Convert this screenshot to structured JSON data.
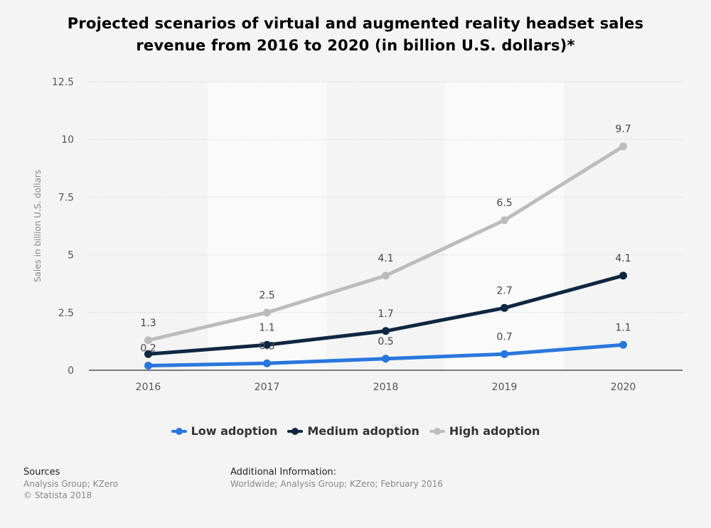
{
  "title": {
    "line1": "Projected scenarios of virtual and augmented reality headset sales",
    "line2": "revenue from 2016 to 2020 (in billion U.S. dollars)*"
  },
  "chart_data": {
    "type": "line",
    "x": [
      "2016",
      "2017",
      "2018",
      "2019",
      "2020"
    ],
    "ylabel": "Sales in billion U.S. dollars",
    "ylim": [
      0,
      12.5
    ],
    "yticks": [
      0,
      2.5,
      5,
      7.5,
      10,
      12.5
    ],
    "ytick_labels": [
      "0",
      "2.5",
      "5",
      "7.5",
      "10",
      "12.5"
    ],
    "grid": true,
    "legend_position": "bottom",
    "series": [
      {
        "name": "Low adoption",
        "color": "#2a76dd",
        "values": [
          0.2,
          0.3,
          0.5,
          0.7,
          1.1
        ],
        "labels": [
          "0.2",
          "0.3",
          "0.5",
          "0.7",
          "1.1"
        ]
      },
      {
        "name": "Medium adoption",
        "color": "#0f2741",
        "values": [
          0.7,
          1.1,
          1.7,
          2.7,
          4.1
        ],
        "labels": [
          "",
          "1.1",
          "1.7",
          "2.7",
          "4.1"
        ]
      },
      {
        "name": "High adoption",
        "color": "#bcbcbc",
        "values": [
          1.3,
          2.5,
          4.1,
          6.5,
          9.7
        ],
        "labels": [
          "1.3",
          "2.5",
          "4.1",
          "6.5",
          "9.7"
        ]
      }
    ]
  },
  "legend": {
    "low": "Low adoption",
    "medium": "Medium adoption",
    "high": "High adoption"
  },
  "footer": {
    "sources_heading": "Sources",
    "sources_line1": "Analysis Group; KZero",
    "sources_line2": "© Statista 2018",
    "additional_heading": "Additional Information:",
    "additional_text": "Worldwide; Analysis Group; KZero; February 2016"
  }
}
